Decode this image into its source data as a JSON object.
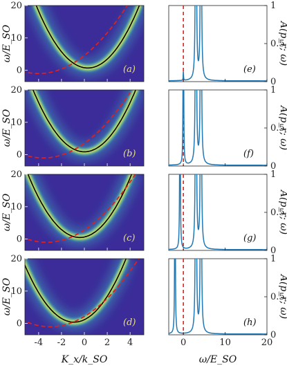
{
  "figure": {
    "left_column": {
      "ylabel": "ω/E_SO",
      "xlabel": "K_x/k_SO",
      "xlim": [
        -5.2,
        5.2
      ],
      "ylim": [
        -3.5,
        20
      ],
      "xticks": [
        -4,
        -2,
        0,
        2,
        4
      ],
      "yticks": [
        0,
        10,
        20
      ]
    },
    "right_column": {
      "ylabel": "A(p_r; ω)",
      "xlabel": "ω/E_SO",
      "xlim": [
        -3.5,
        20
      ],
      "ylim": [
        0,
        1
      ],
      "xticks": [
        0,
        10,
        20
      ],
      "yticks": [
        0,
        0.5,
        1
      ]
    }
  },
  "chart_data": [
    {
      "type": "heatmap",
      "panel": "(a)",
      "colormap_note": "spectral function intensity",
      "series": [
        {
          "name": "",
          "style": "black solid",
          "vertex_x": 0.3,
          "vertex_y": 0.7,
          "curvature": 0.95
        },
        {
          "name": "",
          "style": "red dashed",
          "vertex_x": -4.0,
          "vertex_y": -1.0,
          "curvature": 0.35
        }
      ]
    },
    {
      "type": "line",
      "panel": "(e)",
      "dashed_vertical_x": 0,
      "peaks": [
        {
          "x": 0.0,
          "height": 0.02
        },
        {
          "x": 3.0,
          "height": 1.0
        },
        {
          "x": 4.2,
          "height": 1.0
        }
      ]
    },
    {
      "type": "heatmap",
      "panel": "(b)",
      "series": [
        {
          "name": "",
          "style": "black solid",
          "vertex_x": 0.0,
          "vertex_y": 0.9,
          "curvature": 0.95
        },
        {
          "name": "",
          "style": "red dashed",
          "vertex_x": -3.6,
          "vertex_y": -1.0,
          "curvature": 0.35
        }
      ]
    },
    {
      "type": "line",
      "panel": "(f)",
      "dashed_vertical_x": 0,
      "peaks": [
        {
          "x": 0.0,
          "height": 0.85
        },
        {
          "x": 3.0,
          "height": 1.0
        },
        {
          "x": 4.2,
          "height": 1.0
        }
      ]
    },
    {
      "type": "heatmap",
      "panel": "(c)",
      "series": [
        {
          "name": "",
          "style": "black solid",
          "vertex_x": -0.4,
          "vertex_y": 0.5,
          "curvature": 0.95
        },
        {
          "name": "",
          "style": "red dashed",
          "vertex_x": -3.3,
          "vertex_y": -1.0,
          "curvature": 0.35
        }
      ]
    },
    {
      "type": "line",
      "panel": "(g)",
      "dashed_vertical_x": 0,
      "peaks": [
        {
          "x": -0.8,
          "height": 1.0
        },
        {
          "x": 3.0,
          "height": 1.0
        },
        {
          "x": 4.2,
          "height": 1.0
        }
      ]
    },
    {
      "type": "heatmap",
      "panel": "(d)",
      "series": [
        {
          "name": "",
          "style": "black solid",
          "vertex_x": -0.9,
          "vertex_y": 0.4,
          "curvature": 0.95
        },
        {
          "name": "",
          "style": "red dashed",
          "vertex_x": -3.0,
          "vertex_y": -1.0,
          "curvature": 0.35
        }
      ]
    },
    {
      "type": "line",
      "panel": "(h)",
      "dashed_vertical_x": 0,
      "peaks": [
        {
          "x": -2.0,
          "height": 1.0
        },
        {
          "x": 3.0,
          "height": 1.0
        },
        {
          "x": 4.2,
          "height": 1.0
        }
      ]
    }
  ],
  "panel_labels": [
    "(a)",
    "(b)",
    "(c)",
    "(d)",
    "(e)",
    "(f)",
    "(g)",
    "(h)"
  ],
  "colors": {
    "bg_heat": "#3b2c99",
    "yellow": "#f5e63a",
    "cyan": "#3fd1c8",
    "line_blue": "#1f77b4",
    "red": "#e0201a",
    "label_yellow": "#e8e07a"
  }
}
